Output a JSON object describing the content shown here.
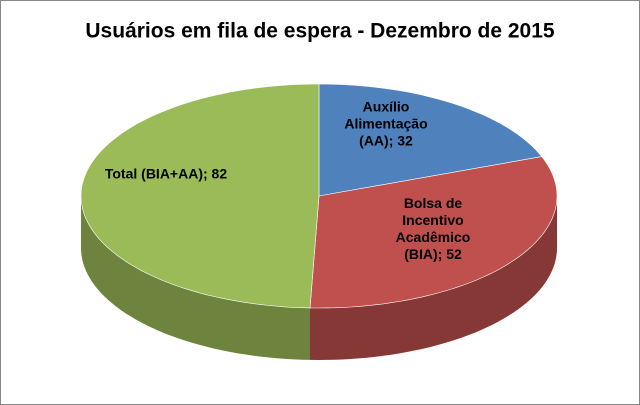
{
  "chart_data": {
    "type": "pie3d",
    "title": "Usuários em fila de espera - Dezembro de 2015",
    "categories": [
      "Auxílio Alimentação (AA)",
      "Bolsa de Incentivo Acadêmico (BIA)",
      "Total (BIA+AA)"
    ],
    "values": [
      32,
      52,
      82
    ],
    "colors": [
      "#4f81bd",
      "#c0504d",
      "#9bbb59"
    ],
    "label_separator": "; "
  }
}
